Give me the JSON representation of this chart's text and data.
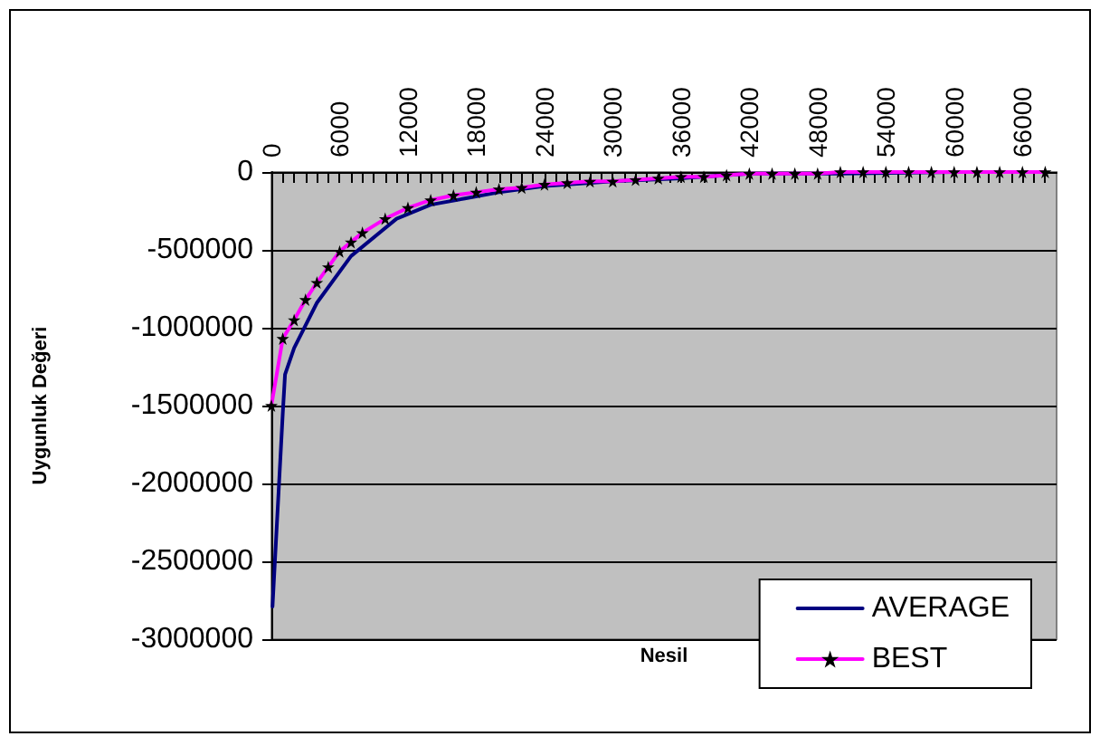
{
  "chart_data": {
    "type": "line",
    "xlabel": "Nesil",
    "ylabel": "Uygunluk Değeri",
    "xlim": [
      0,
      69000
    ],
    "xticks": [
      0,
      6000,
      12000,
      18000,
      24000,
      30000,
      36000,
      42000,
      48000,
      54000,
      60000,
      66000
    ],
    "ylim": [
      -3000000,
      0
    ],
    "yticks": [
      -3000000,
      -2500000,
      -2000000,
      -1500000,
      -1000000,
      -500000,
      0
    ],
    "grid": "y",
    "legend": "bottom right",
    "series": [
      {
        "name": "AVERAGE",
        "color": "#000080",
        "marker": "none",
        "x": [
          100,
          1000,
          1200,
          2000,
          4000,
          7000,
          11000,
          14000,
          17000,
          20000,
          24000,
          30000,
          36000,
          42000,
          50000,
          60000,
          68000
        ],
        "values": [
          -2790000,
          -1550000,
          -1300000,
          -1130000,
          -840000,
          -540000,
          -300000,
          -210000,
          -170000,
          -130000,
          -90000,
          -60000,
          -40000,
          -10000,
          -10000,
          0,
          0
        ]
      },
      {
        "name": "BEST",
        "color": "#ff00ff",
        "marker": "star",
        "x": [
          0,
          1000,
          2000,
          3000,
          4000,
          5000,
          6000,
          7000,
          8000,
          10000,
          12000,
          14000,
          16000,
          18000,
          20000,
          22000,
          24000,
          26000,
          28000,
          30000,
          32000,
          34000,
          36000,
          38000,
          40000,
          42000,
          44000,
          46000,
          48000,
          50000,
          52000,
          54000,
          56000,
          58000,
          60000,
          62000,
          64000,
          66000,
          68000
        ],
        "values": [
          -1500000,
          -1070000,
          -950000,
          -820000,
          -710000,
          -610000,
          -510000,
          -450000,
          -390000,
          -300000,
          -230000,
          -180000,
          -150000,
          -130000,
          -110000,
          -100000,
          -80000,
          -70000,
          -60000,
          -60000,
          -50000,
          -40000,
          -30000,
          -30000,
          -20000,
          -10000,
          -10000,
          -10000,
          -10000,
          0,
          0,
          0,
          0,
          0,
          0,
          0,
          0,
          0,
          0
        ]
      }
    ]
  }
}
